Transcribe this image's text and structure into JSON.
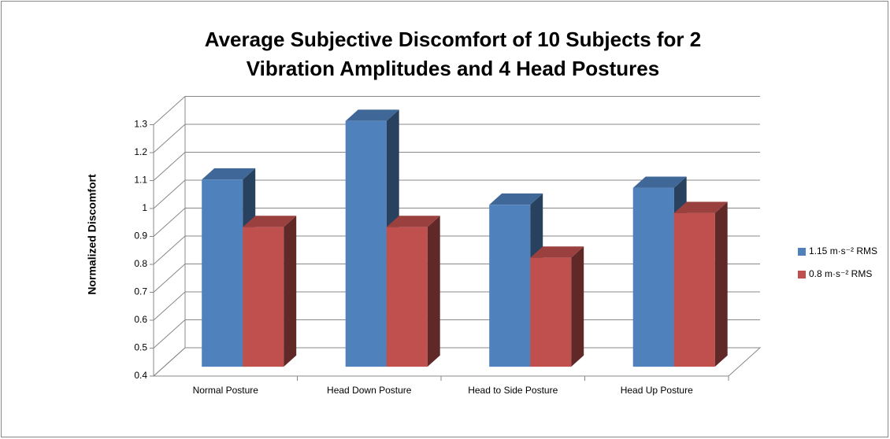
{
  "chart_data": {
    "type": "bar3d",
    "title": "Average Subjective Discomfort of 10 Subjects for 2 Vibration Amplitudes and 4 Head Postures",
    "y_label": "Normalized Discomfort",
    "categories": [
      "Normal Posture",
      "Head Down Posture",
      "Head to Side Posture",
      "Head Up Posture"
    ],
    "series": [
      {
        "name": "1.15 m·s⁻² RMS",
        "color": "#4f81bd",
        "values": [
          1.07,
          1.28,
          0.98,
          1.04
        ]
      },
      {
        "name": "0.8 m·s⁻² RMS",
        "color": "#c0504d",
        "values": [
          0.9,
          0.9,
          0.79,
          0.95
        ]
      }
    ],
    "ylim": [
      0.4,
      1.3
    ],
    "yticks": [
      0.4,
      0.5,
      0.6,
      0.7,
      0.8,
      0.9,
      1.0,
      1.1,
      1.2,
      1.3
    ],
    "grid": true,
    "legend": "right"
  }
}
